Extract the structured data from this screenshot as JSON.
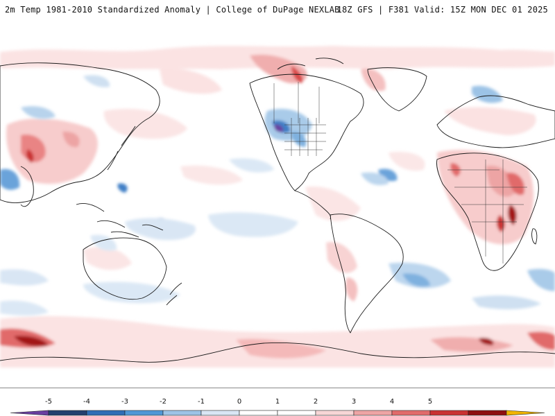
{
  "header": {
    "left_title": "2m Temp 1981-2010 Standardized Anomaly | College of DuPage NEXLAB",
    "right_title": "18Z GFS | F381 Valid: 15Z MON DEC 01 2025"
  },
  "colorbar": {
    "labels": [
      "-5",
      "-4",
      "-3",
      "-2",
      "-1",
      "0",
      "1",
      "2",
      "3",
      "4",
      "5"
    ],
    "colors": [
      "#6a3fa0",
      "#24406e",
      "#2f6db5",
      "#4f97d6",
      "#9cc3e6",
      "#d9e6f4",
      "#ffffff",
      "#ffffff",
      "#f7d6d6",
      "#eda4a4",
      "#e16b6b",
      "#c93232",
      "#8e0e10",
      "#f0b400"
    ]
  }
}
